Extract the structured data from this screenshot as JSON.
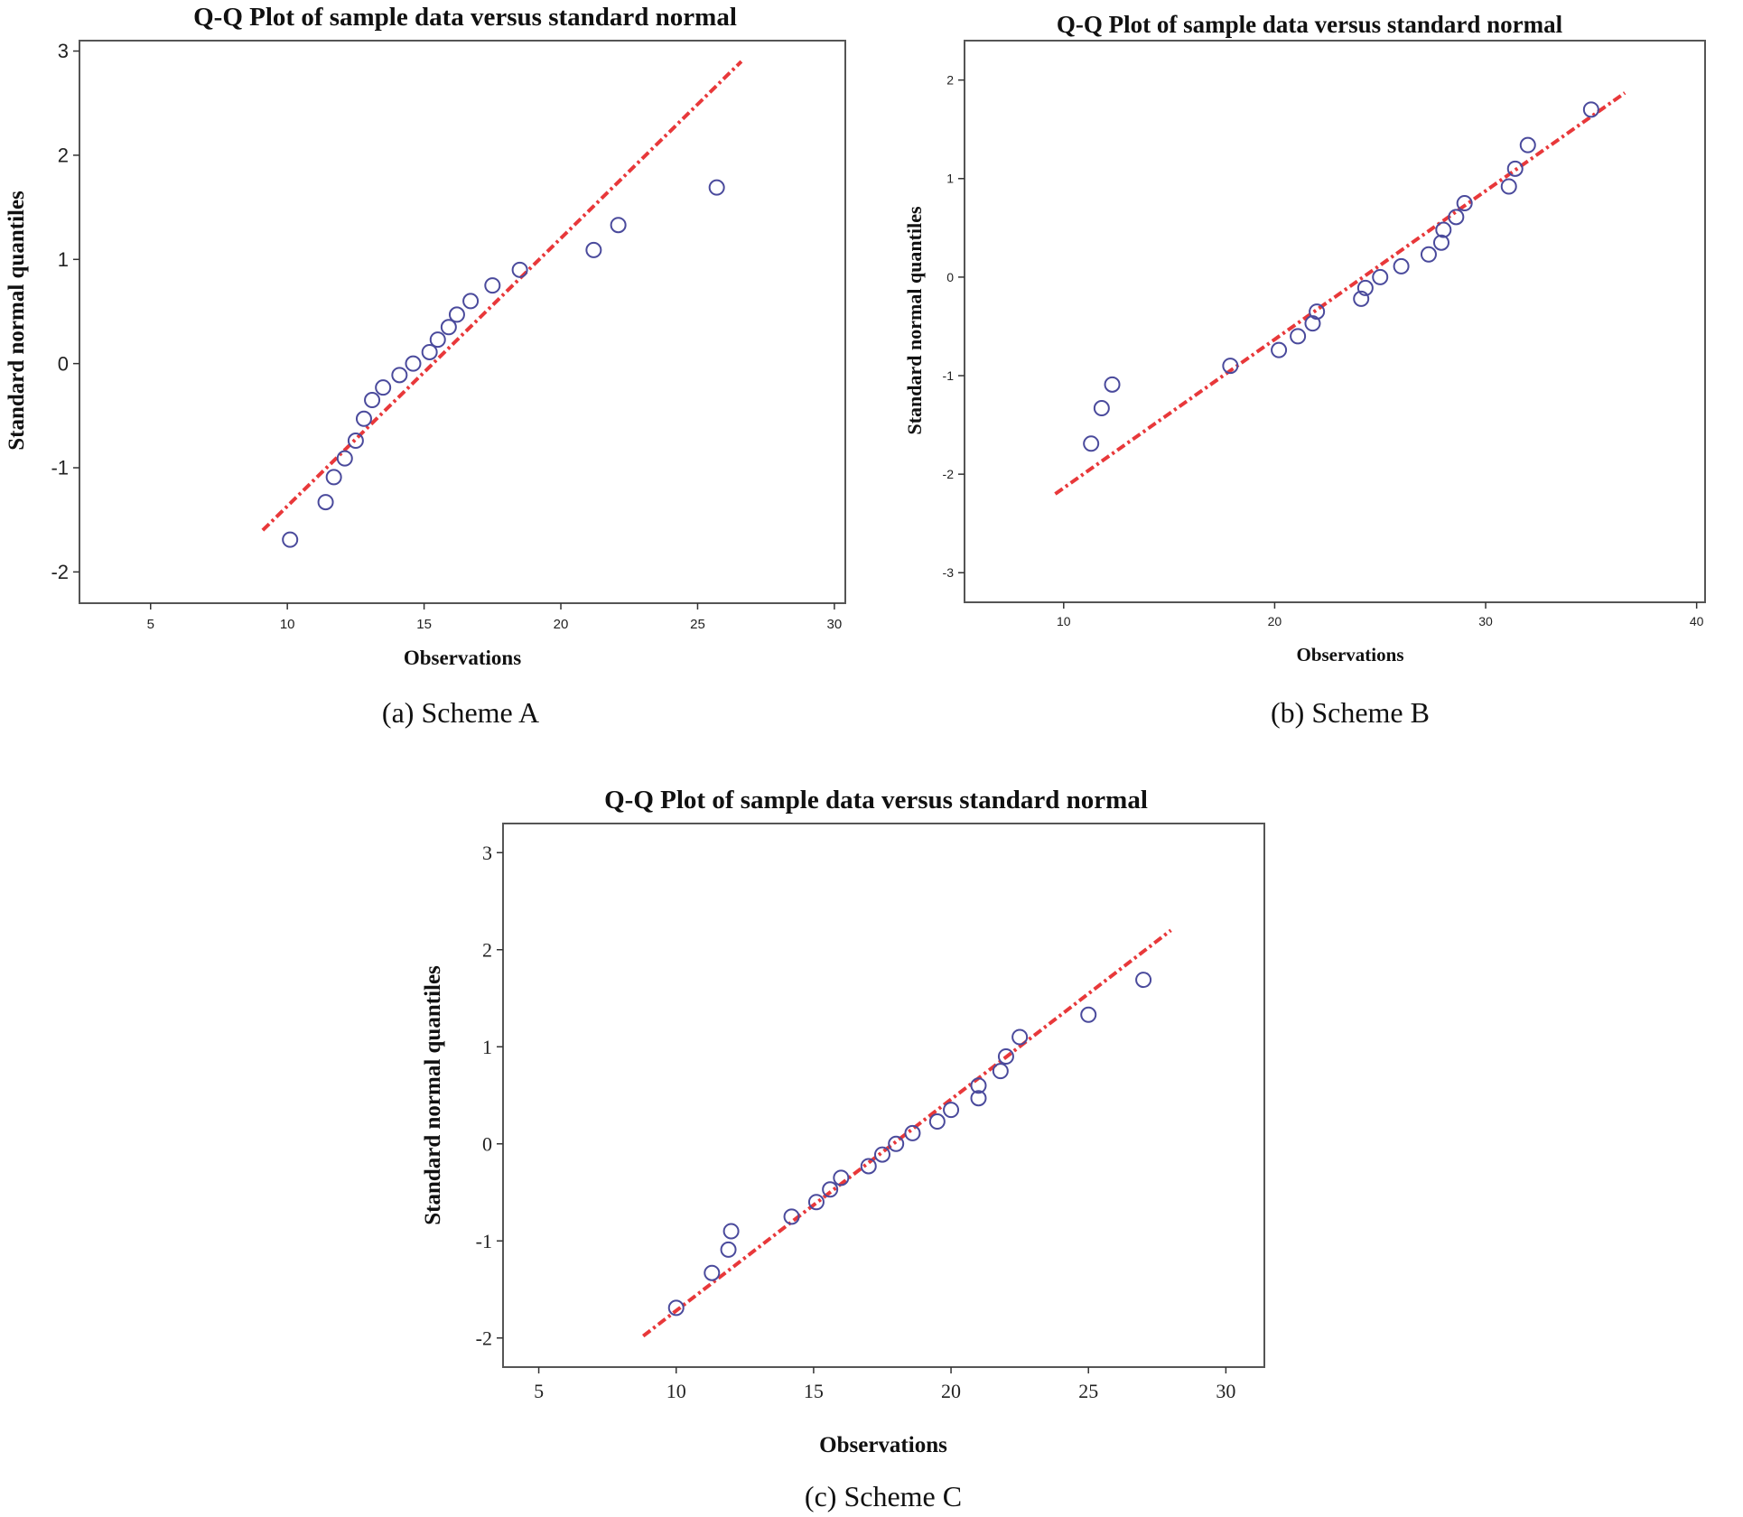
{
  "colors": {
    "line": "#e8383a",
    "marker": "#4a4a9c"
  },
  "chart_data": [
    {
      "type": "scatter",
      "panel": "a",
      "title": "Q-Q Plot of sample data versus standard normal",
      "xlabel": "Observations",
      "ylabel": "Standard normal quantiles",
      "caption": "(a) Scheme A",
      "xlim": [
        2.4,
        30.4
      ],
      "ylim": [
        -2.3,
        3.1
      ],
      "xticks": [
        5,
        10,
        15,
        20,
        25,
        30
      ],
      "yticks": [
        -2,
        -1,
        0,
        1,
        2,
        3
      ],
      "grid": false,
      "reference_line": {
        "x": [
          9.1,
          26.6
        ],
        "y": [
          -1.6,
          2.9
        ]
      },
      "points": {
        "x": [
          10.1,
          11.4,
          11.7,
          12.1,
          12.5,
          12.8,
          13.1,
          13.5,
          14.1,
          14.6,
          15.2,
          15.5,
          15.9,
          16.2,
          16.7,
          17.5,
          18.5,
          21.2,
          22.1,
          25.7
        ],
        "y": [
          -1.69,
          -1.33,
          -1.09,
          -0.91,
          -0.74,
          -0.53,
          -0.35,
          -0.23,
          -0.11,
          0.0,
          0.11,
          0.23,
          0.35,
          0.47,
          0.6,
          0.75,
          0.9,
          1.09,
          1.33,
          1.69
        ]
      }
    },
    {
      "type": "scatter",
      "panel": "b",
      "title": "Q-Q Plot of sample data versus standard normal",
      "xlabel": "Observations",
      "ylabel": "Standard normal quantiles",
      "caption": "(b) Scheme B",
      "xlim": [
        5.3,
        40.4
      ],
      "ylim": [
        -3.3,
        2.4
      ],
      "xticks": [
        10,
        20,
        30,
        40
      ],
      "yticks": [
        -3,
        -2,
        -1,
        0,
        1,
        2
      ],
      "grid": false,
      "reference_line": {
        "x": [
          9.6,
          36.6
        ],
        "y": [
          -2.2,
          1.87
        ]
      },
      "points": {
        "x": [
          11.3,
          11.8,
          12.3,
          17.9,
          20.2,
          21.1,
          21.8,
          22.0,
          24.1,
          24.3,
          25.0,
          26.0,
          27.3,
          27.9,
          28.0,
          28.6,
          29.0,
          31.1,
          31.4,
          32.0,
          35.0
        ],
        "y": [
          -1.69,
          -1.33,
          -1.09,
          -0.9,
          -0.74,
          -0.6,
          -0.47,
          -0.35,
          -0.22,
          -0.11,
          0.0,
          0.11,
          0.23,
          0.35,
          0.48,
          0.61,
          0.75,
          0.92,
          1.1,
          1.34,
          1.7
        ]
      }
    },
    {
      "type": "scatter",
      "panel": "c",
      "title": "Q-Q Plot of sample data versus standard normal",
      "xlabel": "Observations",
      "ylabel": "Standard normal quantiles",
      "caption": "(c) Scheme C",
      "xlim": [
        3.7,
        31.4
      ],
      "ylim": [
        -2.3,
        3.3
      ],
      "xticks": [
        5,
        10,
        15,
        20,
        25,
        30
      ],
      "yticks": [
        -2,
        -1,
        0,
        1,
        2,
        3
      ],
      "grid": false,
      "reference_line": {
        "x": [
          8.8,
          28.0
        ],
        "y": [
          -1.98,
          2.2
        ]
      },
      "points": {
        "x": [
          10.0,
          11.3,
          11.9,
          12.0,
          14.2,
          15.1,
          15.6,
          16.0,
          17.0,
          17.5,
          18.0,
          18.6,
          19.5,
          20.0,
          21.0,
          21.0,
          21.8,
          22.0,
          22.5,
          25.0,
          27.0
        ],
        "y": [
          -1.69,
          -1.33,
          -1.09,
          -0.9,
          -0.75,
          -0.6,
          -0.47,
          -0.35,
          -0.23,
          -0.11,
          0.0,
          0.11,
          0.23,
          0.35,
          0.47,
          0.6,
          0.75,
          0.9,
          1.1,
          1.33,
          1.69
        ]
      }
    }
  ]
}
